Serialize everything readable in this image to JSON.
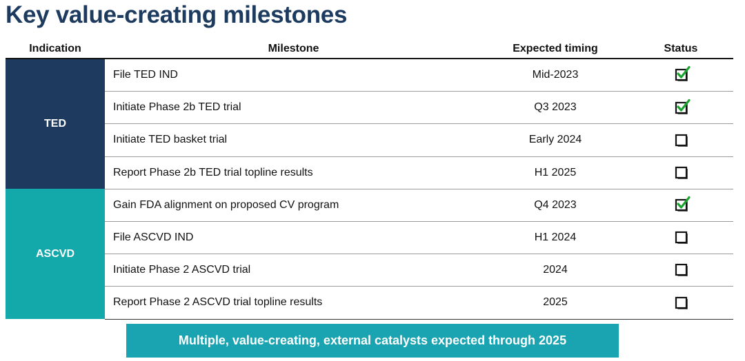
{
  "title": "Key value-creating milestones",
  "headers": {
    "indication": "Indication",
    "milestone": "Milestone",
    "timing": "Expected timing",
    "status": "Status"
  },
  "groups": [
    {
      "name": "TED",
      "color": "#1f3a5f",
      "rows": [
        {
          "milestone": "File TED IND",
          "timing": "Mid-2023",
          "status": "complete"
        },
        {
          "milestone": "Initiate Phase 2b TED trial",
          "timing": "Q3 2023",
          "status": "complete"
        },
        {
          "milestone": "Initiate TED basket trial",
          "timing": "Early 2024",
          "status": "pending"
        },
        {
          "milestone": "Report Phase 2b TED trial topline results",
          "timing": "H1 2025",
          "status": "pending"
        }
      ]
    },
    {
      "name": "ASCVD",
      "color": "#13a9aa",
      "rows": [
        {
          "milestone": "Gain FDA alignment on proposed CV program",
          "timing": "Q4 2023",
          "status": "complete"
        },
        {
          "milestone": "File ASCVD IND",
          "timing": "H1 2024",
          "status": "pending"
        },
        {
          "milestone": "Initiate Phase 2 ASCVD trial",
          "timing": "2024",
          "status": "pending"
        },
        {
          "milestone": "Report Phase 2 ASCVD trial topline results",
          "timing": "2025",
          "status": "pending"
        }
      ]
    }
  ],
  "banner": "Multiple, value-creating, external catalysts expected through 2025",
  "colors": {
    "title": "#1d3a5f",
    "check": "#1aa32e",
    "banner": "#1aa3b0"
  }
}
